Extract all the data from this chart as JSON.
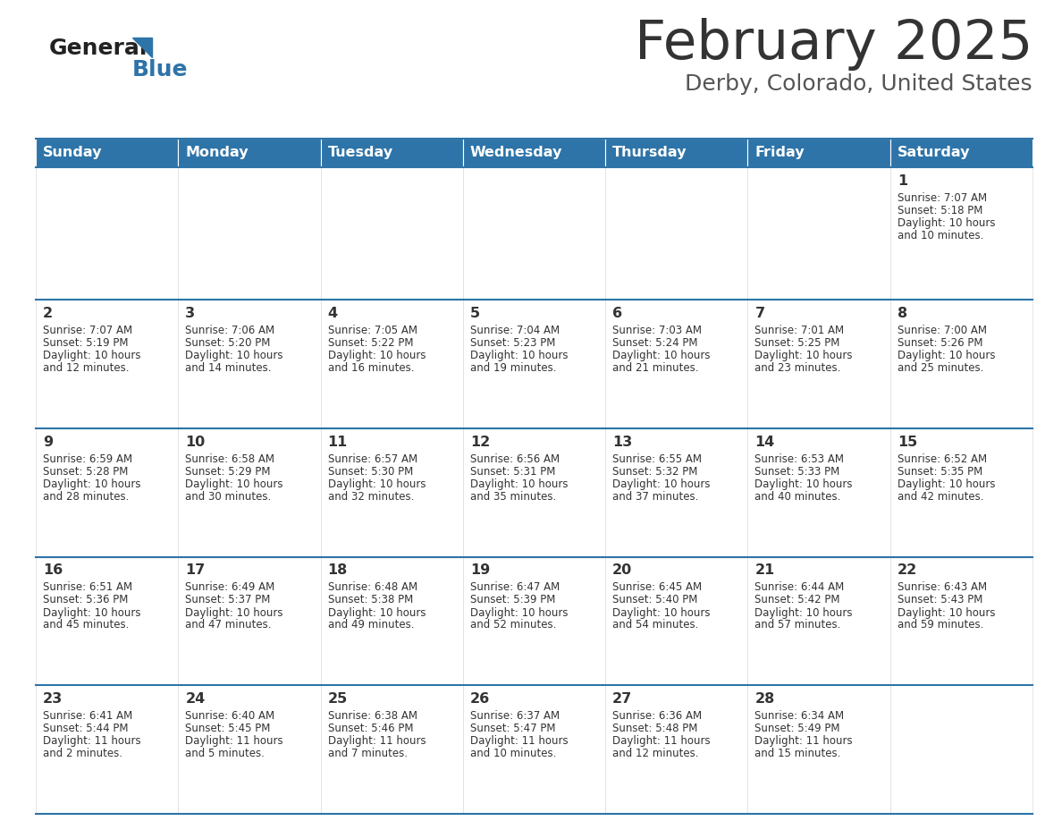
{
  "title": "February 2025",
  "subtitle": "Derby, Colorado, United States",
  "days_of_week": [
    "Sunday",
    "Monday",
    "Tuesday",
    "Wednesday",
    "Thursday",
    "Friday",
    "Saturday"
  ],
  "header_bg": "#2E74A8",
  "header_text": "#FFFFFF",
  "cell_bg": "#FFFFFF",
  "cell_bg_empty_row1": "#F5F5F5",
  "text_color": "#333333",
  "border_color": "#2E74A8",
  "logo_general_color": "#222222",
  "logo_blue_color": "#2E74A8",
  "logo_triangle_color": "#2E74A8",
  "calendar_data": [
    [
      null,
      null,
      null,
      null,
      null,
      null,
      {
        "day": 1,
        "sunrise": "7:07 AM",
        "sunset": "5:18 PM",
        "daylight": "10 hours\nand 10 minutes."
      }
    ],
    [
      {
        "day": 2,
        "sunrise": "7:07 AM",
        "sunset": "5:19 PM",
        "daylight": "10 hours\nand 12 minutes."
      },
      {
        "day": 3,
        "sunrise": "7:06 AM",
        "sunset": "5:20 PM",
        "daylight": "10 hours\nand 14 minutes."
      },
      {
        "day": 4,
        "sunrise": "7:05 AM",
        "sunset": "5:22 PM",
        "daylight": "10 hours\nand 16 minutes."
      },
      {
        "day": 5,
        "sunrise": "7:04 AM",
        "sunset": "5:23 PM",
        "daylight": "10 hours\nand 19 minutes."
      },
      {
        "day": 6,
        "sunrise": "7:03 AM",
        "sunset": "5:24 PM",
        "daylight": "10 hours\nand 21 minutes."
      },
      {
        "day": 7,
        "sunrise": "7:01 AM",
        "sunset": "5:25 PM",
        "daylight": "10 hours\nand 23 minutes."
      },
      {
        "day": 8,
        "sunrise": "7:00 AM",
        "sunset": "5:26 PM",
        "daylight": "10 hours\nand 25 minutes."
      }
    ],
    [
      {
        "day": 9,
        "sunrise": "6:59 AM",
        "sunset": "5:28 PM",
        "daylight": "10 hours\nand 28 minutes."
      },
      {
        "day": 10,
        "sunrise": "6:58 AM",
        "sunset": "5:29 PM",
        "daylight": "10 hours\nand 30 minutes."
      },
      {
        "day": 11,
        "sunrise": "6:57 AM",
        "sunset": "5:30 PM",
        "daylight": "10 hours\nand 32 minutes."
      },
      {
        "day": 12,
        "sunrise": "6:56 AM",
        "sunset": "5:31 PM",
        "daylight": "10 hours\nand 35 minutes."
      },
      {
        "day": 13,
        "sunrise": "6:55 AM",
        "sunset": "5:32 PM",
        "daylight": "10 hours\nand 37 minutes."
      },
      {
        "day": 14,
        "sunrise": "6:53 AM",
        "sunset": "5:33 PM",
        "daylight": "10 hours\nand 40 minutes."
      },
      {
        "day": 15,
        "sunrise": "6:52 AM",
        "sunset": "5:35 PM",
        "daylight": "10 hours\nand 42 minutes."
      }
    ],
    [
      {
        "day": 16,
        "sunrise": "6:51 AM",
        "sunset": "5:36 PM",
        "daylight": "10 hours\nand 45 minutes."
      },
      {
        "day": 17,
        "sunrise": "6:49 AM",
        "sunset": "5:37 PM",
        "daylight": "10 hours\nand 47 minutes."
      },
      {
        "day": 18,
        "sunrise": "6:48 AM",
        "sunset": "5:38 PM",
        "daylight": "10 hours\nand 49 minutes."
      },
      {
        "day": 19,
        "sunrise": "6:47 AM",
        "sunset": "5:39 PM",
        "daylight": "10 hours\nand 52 minutes."
      },
      {
        "day": 20,
        "sunrise": "6:45 AM",
        "sunset": "5:40 PM",
        "daylight": "10 hours\nand 54 minutes."
      },
      {
        "day": 21,
        "sunrise": "6:44 AM",
        "sunset": "5:42 PM",
        "daylight": "10 hours\nand 57 minutes."
      },
      {
        "day": 22,
        "sunrise": "6:43 AM",
        "sunset": "5:43 PM",
        "daylight": "10 hours\nand 59 minutes."
      }
    ],
    [
      {
        "day": 23,
        "sunrise": "6:41 AM",
        "sunset": "5:44 PM",
        "daylight": "11 hours\nand 2 minutes."
      },
      {
        "day": 24,
        "sunrise": "6:40 AM",
        "sunset": "5:45 PM",
        "daylight": "11 hours\nand 5 minutes."
      },
      {
        "day": 25,
        "sunrise": "6:38 AM",
        "sunset": "5:46 PM",
        "daylight": "11 hours\nand 7 minutes."
      },
      {
        "day": 26,
        "sunrise": "6:37 AM",
        "sunset": "5:47 PM",
        "daylight": "11 hours\nand 10 minutes."
      },
      {
        "day": 27,
        "sunrise": "6:36 AM",
        "sunset": "5:48 PM",
        "daylight": "11 hours\nand 12 minutes."
      },
      {
        "day": 28,
        "sunrise": "6:34 AM",
        "sunset": "5:49 PM",
        "daylight": "11 hours\nand 15 minutes."
      },
      null
    ]
  ]
}
